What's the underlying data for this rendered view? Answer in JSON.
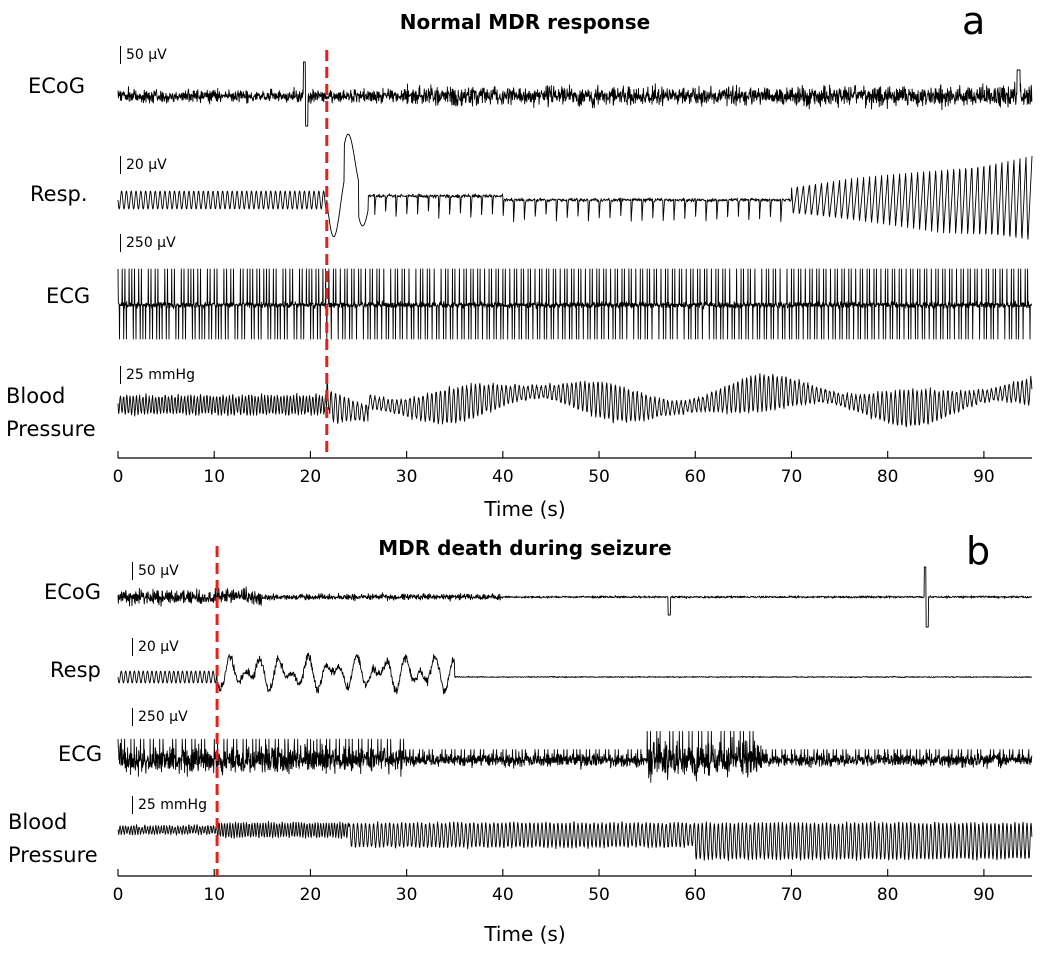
{
  "chart_data": [
    {
      "panel": "a",
      "type": "line",
      "title": "Normal MDR response",
      "xlabel": "Time (s)",
      "xlim": [
        0,
        95
      ],
      "xticks": [
        0,
        10,
        20,
        30,
        40,
        50,
        60,
        70,
        80,
        90
      ],
      "event_marker_time": 21.7,
      "series": [
        {
          "name": "ECoG",
          "scale_bar": "50 µV"
        },
        {
          "name": "Resp.",
          "scale_bar": "20 µV"
        },
        {
          "name": "ECG",
          "scale_bar": "250 µV"
        },
        {
          "name": "Blood Pressure",
          "scale_bar": "25 mmHg"
        }
      ]
    },
    {
      "panel": "b",
      "type": "line",
      "title": "MDR death during seizure",
      "xlabel": "Time (s)",
      "xlim": [
        0,
        95
      ],
      "xticks": [
        0,
        10,
        20,
        30,
        40,
        50,
        60,
        70,
        80,
        90
      ],
      "event_marker_time": 10.3,
      "series": [
        {
          "name": "ECoG",
          "scale_bar": "50 µV"
        },
        {
          "name": "Resp",
          "scale_bar": "20 µV"
        },
        {
          "name": "ECG",
          "scale_bar": "250 µV"
        },
        {
          "name": "Blood Pressure",
          "scale_bar": "25 mmHg"
        }
      ]
    }
  ],
  "colors": {
    "trace": "#000000",
    "event_marker": "#e8201a",
    "background": "#ffffff"
  }
}
